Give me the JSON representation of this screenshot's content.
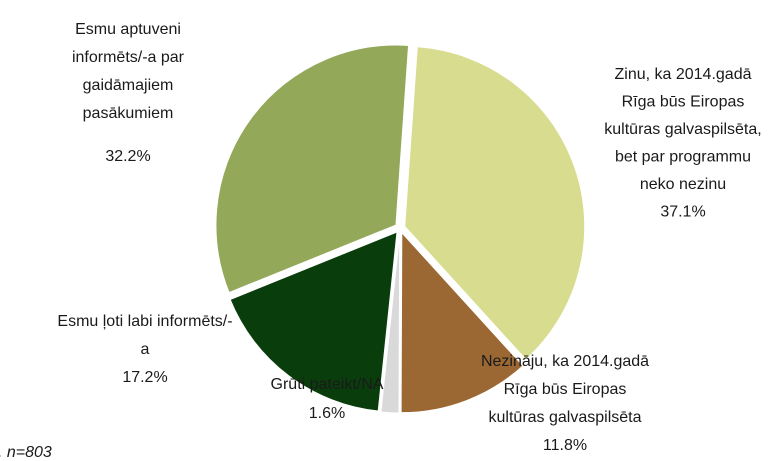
{
  "chart_data": {
    "type": "pie",
    "categories": [
      "Zinu, ka 2014.gadā\nRīga būs Eiropas\nkultūras galvaspilsēta,\nbet par programmu\nneko nezinu",
      "Nezināju, ka 2014.gadā\nRīga būs Eiropas\nkultūras galvaspilsēta",
      "Grūti pateikt/NA",
      "Esmu ļoti labi informēts/-\na",
      "Esmu aptuveni\ninformēts/-a par\ngaidāmajiem\npasākumiem"
    ],
    "values": [
      37.1,
      11.8,
      1.6,
      17.2,
      32.2
    ],
    "value_labels": [
      "37.1%",
      "11.8%",
      "1.6%",
      "17.2%",
      "32.2%"
    ],
    "colors": [
      "#d7dc8f",
      "#9b6834",
      "#d9d9d9",
      "#0a3d0c",
      "#93a859"
    ],
    "note": ". n=803"
  }
}
